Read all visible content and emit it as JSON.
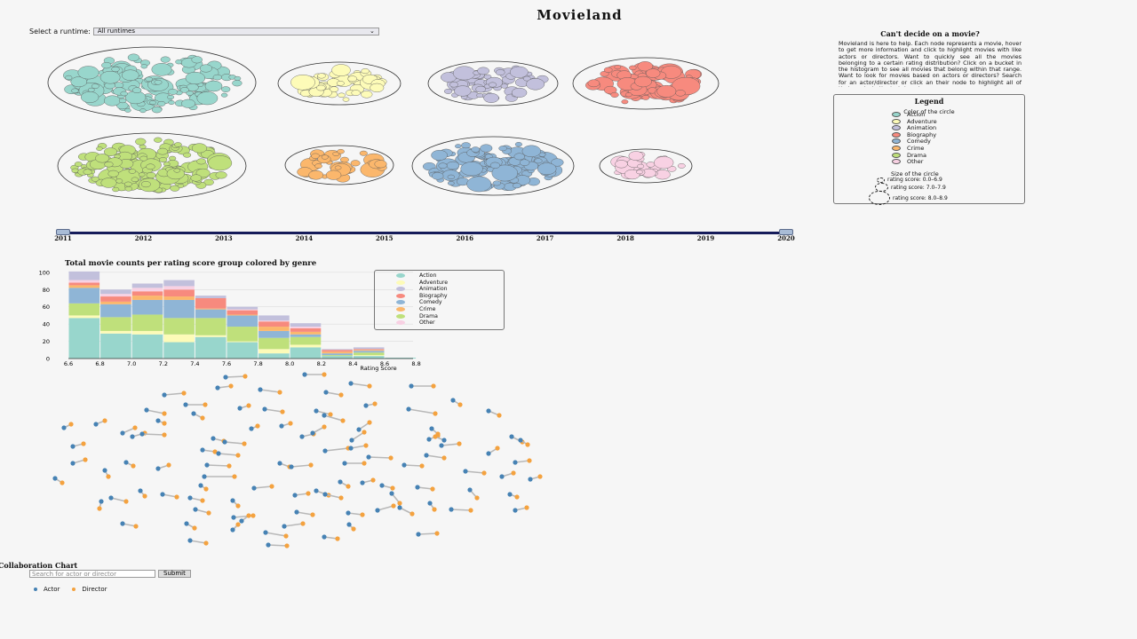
{
  "page": {
    "title": "Movieland"
  },
  "runtime_filter": {
    "label": "Select a runtime:",
    "selected": "All runtimes",
    "chevron": "⌄"
  },
  "genres": [
    {
      "name": "Action",
      "color": "#98d6cc"
    },
    {
      "name": "Adventure",
      "color": "#fdfbb8"
    },
    {
      "name": "Animation",
      "color": "#c2c0dc"
    },
    {
      "name": "Biography",
      "color": "#f78a7e"
    },
    {
      "name": "Comedy",
      "color": "#8fb5d6"
    },
    {
      "name": "Crime",
      "color": "#fbb76c"
    },
    {
      "name": "Drama",
      "color": "#bfe07b"
    },
    {
      "name": "Other",
      "color": "#f8d1e3"
    }
  ],
  "timeline": {
    "years": [
      "2011",
      "2012",
      "2013",
      "2014",
      "2015",
      "2016",
      "2017",
      "2018",
      "2019",
      "2020"
    ],
    "start": "2011",
    "end": "2020"
  },
  "info": {
    "title": "Can't decide on a movie?",
    "text": "Movieland is here to help. Each node represents a movie, hover to get more information and click to highlight movies with like actors or directors. Want to quickly see all the movies belonging to a certain rating distribution? Click on a bucket in the histogram to see all movies that belong within that range. Want to look for movies based on actors or directors? Search for an actor/director or click an their node to highlight all of their works in the last decade."
  },
  "legend": {
    "title": "Legend",
    "color_title": "Color of the circle",
    "size_title": "Size of the circle",
    "sizes": [
      "rating score: 0.0–6.9",
      "rating score: 7.0–7.9",
      "rating score: 8.0–8.9"
    ]
  },
  "histogram": {
    "title": "Total movie counts per rating score group colored by genre",
    "xlabel": "Rating Score",
    "ylabel": ""
  },
  "chart_data": {
    "type": "bar",
    "stacked": true,
    "title": "Total movie counts per rating score group colored by genre",
    "xlabel": "Rating Score",
    "ylabel": "",
    "x_ticks": [
      "6.6",
      "6.8",
      "7.0",
      "7.2",
      "7.4",
      "7.6",
      "7.8",
      "8.0",
      "8.2",
      "8.4",
      "8.6",
      "8.8"
    ],
    "yticks": [
      "0",
      "20",
      "40",
      "60",
      "80",
      "100"
    ],
    "ylim": [
      0,
      105
    ],
    "categories": [
      "6.6",
      "6.8",
      "7.0",
      "7.2",
      "7.4",
      "7.6",
      "7.8",
      "8.0",
      "8.2",
      "8.4",
      "8.6",
      "8.8"
    ],
    "series": [
      {
        "name": "Action",
        "values": [
          47,
          29,
          28,
          19,
          25,
          19,
          6,
          13,
          3,
          3,
          1,
          0
        ]
      },
      {
        "name": "Adventure",
        "values": [
          3,
          3,
          4,
          9,
          2,
          1,
          5,
          3,
          0,
          1,
          0,
          0
        ]
      },
      {
        "name": "Drama",
        "values": [
          14,
          16,
          19,
          19,
          20,
          17,
          13,
          9,
          1,
          3,
          0,
          0
        ]
      },
      {
        "name": "Comedy",
        "values": [
          18,
          15,
          17,
          21,
          10,
          13,
          8,
          3,
          2,
          2,
          0,
          0
        ]
      },
      {
        "name": "Crime",
        "values": [
          3,
          3,
          5,
          4,
          1,
          1,
          5,
          3,
          2,
          1,
          0,
          0
        ]
      },
      {
        "name": "Biography",
        "values": [
          3,
          6,
          5,
          8,
          12,
          5,
          6,
          4,
          2,
          1,
          0,
          0
        ]
      },
      {
        "name": "Other",
        "values": [
          3,
          3,
          4,
          4,
          0,
          1,
          1,
          2,
          0,
          0,
          0,
          0
        ]
      },
      {
        "name": "Animation",
        "values": [
          10,
          5,
          5,
          7,
          3,
          3,
          6,
          4,
          1,
          2,
          0,
          0
        ]
      }
    ]
  },
  "network": {
    "title": "Collaboration Chart",
    "search_placeholder": "Search for actor or director",
    "submit_label": "Submit",
    "legend": [
      {
        "name": "Actor",
        "color": "#4682b4"
      },
      {
        "name": "Director",
        "color": "#f4a23f"
      }
    ]
  }
}
